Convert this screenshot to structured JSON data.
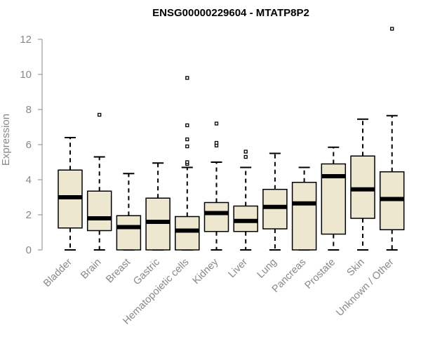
{
  "chart_data": {
    "type": "boxplot",
    "title": "ENSG00000229604 - MTATP8P2",
    "xlabel": "",
    "ylabel": "Expression",
    "ylim": [
      0,
      12.6
    ],
    "yticks": [
      0,
      2,
      4,
      6,
      8,
      10,
      12
    ],
    "ytick_labels": [
      "0",
      "2",
      "4",
      "6",
      "8",
      "10",
      "12"
    ],
    "colors": {
      "box_fill": "#ede7cf",
      "stroke": "#000000",
      "axis_text": "#888888"
    },
    "categories": [
      "Bladder",
      "Brain",
      "Breast",
      "Gastric",
      "Hematopoietic cells",
      "Kidney",
      "Liver",
      "Lung",
      "Pancreas",
      "Prostate",
      "Skin",
      "Unknown / Other"
    ],
    "boxes": [
      {
        "name": "Bladder",
        "whisker_low": 0.0,
        "q1": 1.25,
        "median": 3.0,
        "q3": 4.55,
        "whisker_high": 6.4,
        "outliers": []
      },
      {
        "name": "Brain",
        "whisker_low": 0.0,
        "q1": 1.1,
        "median": 1.8,
        "q3": 3.35,
        "whisker_high": 5.3,
        "outliers": [
          7.7
        ]
      },
      {
        "name": "Breast",
        "whisker_low": 0.0,
        "q1": 0.0,
        "median": 1.3,
        "q3": 1.95,
        "whisker_high": 4.35,
        "outliers": []
      },
      {
        "name": "Gastric",
        "whisker_low": 0.0,
        "q1": 0.0,
        "median": 1.6,
        "q3": 2.95,
        "whisker_high": 4.95,
        "outliers": []
      },
      {
        "name": "Hematopoietic cells",
        "whisker_low": 0.0,
        "q1": 0.0,
        "median": 1.1,
        "q3": 1.9,
        "whisker_high": 4.7,
        "outliers": [
          4.9,
          5.0,
          5.9,
          6.3,
          7.1,
          9.8
        ]
      },
      {
        "name": "Kidney",
        "whisker_low": 0.0,
        "q1": 1.05,
        "median": 2.1,
        "q3": 2.7,
        "whisker_high": 5.0,
        "outliers": [
          5.95,
          6.1,
          7.2
        ]
      },
      {
        "name": "Liver",
        "whisker_low": 0.0,
        "q1": 1.05,
        "median": 1.65,
        "q3": 2.5,
        "whisker_high": 4.7,
        "outliers": [
          5.3,
          5.6
        ]
      },
      {
        "name": "Lung",
        "whisker_low": 0.0,
        "q1": 1.2,
        "median": 2.45,
        "q3": 3.45,
        "whisker_high": 5.5,
        "outliers": []
      },
      {
        "name": "Pancreas",
        "whisker_low": 0.0,
        "q1": 0.0,
        "median": 2.65,
        "q3": 3.85,
        "whisker_high": 4.7,
        "outliers": []
      },
      {
        "name": "Prostate",
        "whisker_low": 0.0,
        "q1": 0.9,
        "median": 4.2,
        "q3": 4.9,
        "whisker_high": 5.85,
        "outliers": []
      },
      {
        "name": "Skin",
        "whisker_low": 0.0,
        "q1": 1.8,
        "median": 3.45,
        "q3": 5.35,
        "whisker_high": 7.45,
        "outliers": []
      },
      {
        "name": "Unknown / Other",
        "whisker_low": 0.0,
        "q1": 1.15,
        "median": 2.9,
        "q3": 4.45,
        "whisker_high": 7.65,
        "outliers": [
          12.6
        ]
      }
    ]
  }
}
